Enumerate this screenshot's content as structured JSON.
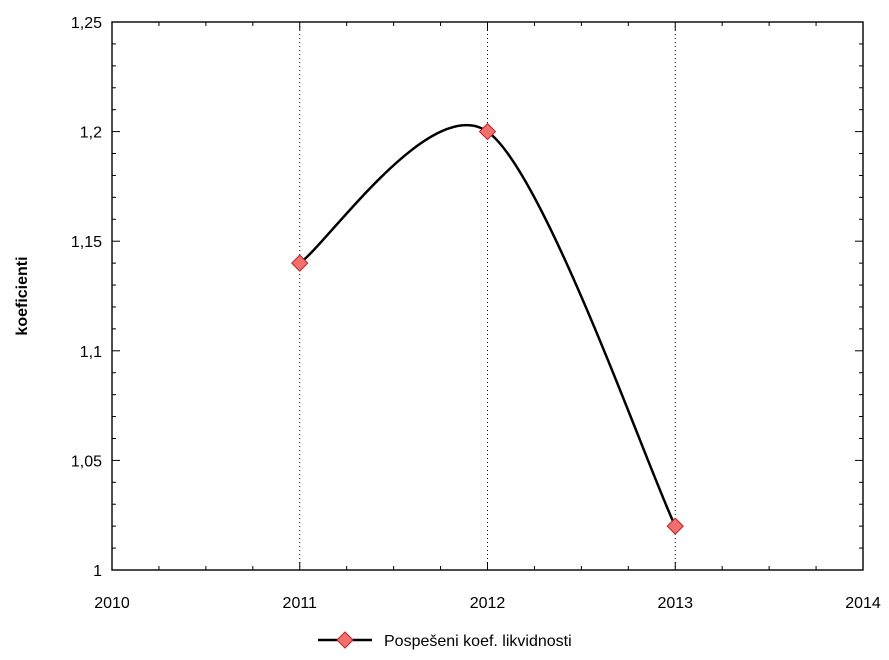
{
  "chart_data": {
    "type": "line",
    "title": "",
    "xlabel": "",
    "ylabel": "koeficienti",
    "xlim": [
      2010,
      2014
    ],
    "ylim": [
      1,
      1.25
    ],
    "x_ticks": [
      2010,
      2011,
      2012,
      2013,
      2014
    ],
    "x_tick_labels": [
      "2010",
      "2011",
      "2012",
      "2013",
      "2014"
    ],
    "y_ticks": [
      1,
      1.05,
      1.1,
      1.15,
      1.2,
      1.25
    ],
    "y_tick_labels": [
      "1",
      "1,05",
      "1,1",
      "1,15",
      "1,2",
      "1,25"
    ],
    "x_minor_step": 0.25,
    "y_minor_step": 0.01,
    "vertical_grid": "dotted at major x ticks",
    "smooth": true,
    "legend_position": "bottom-center",
    "series": [
      {
        "name": "Pospešeni koef. likvidnosti",
        "x": [
          2011,
          2012,
          2013
        ],
        "values": [
          1.14,
          1.2,
          1.02
        ],
        "line_color": "#000000",
        "marker": "diamond",
        "marker_fill": "#f07070",
        "marker_stroke": "#c02020"
      }
    ]
  }
}
